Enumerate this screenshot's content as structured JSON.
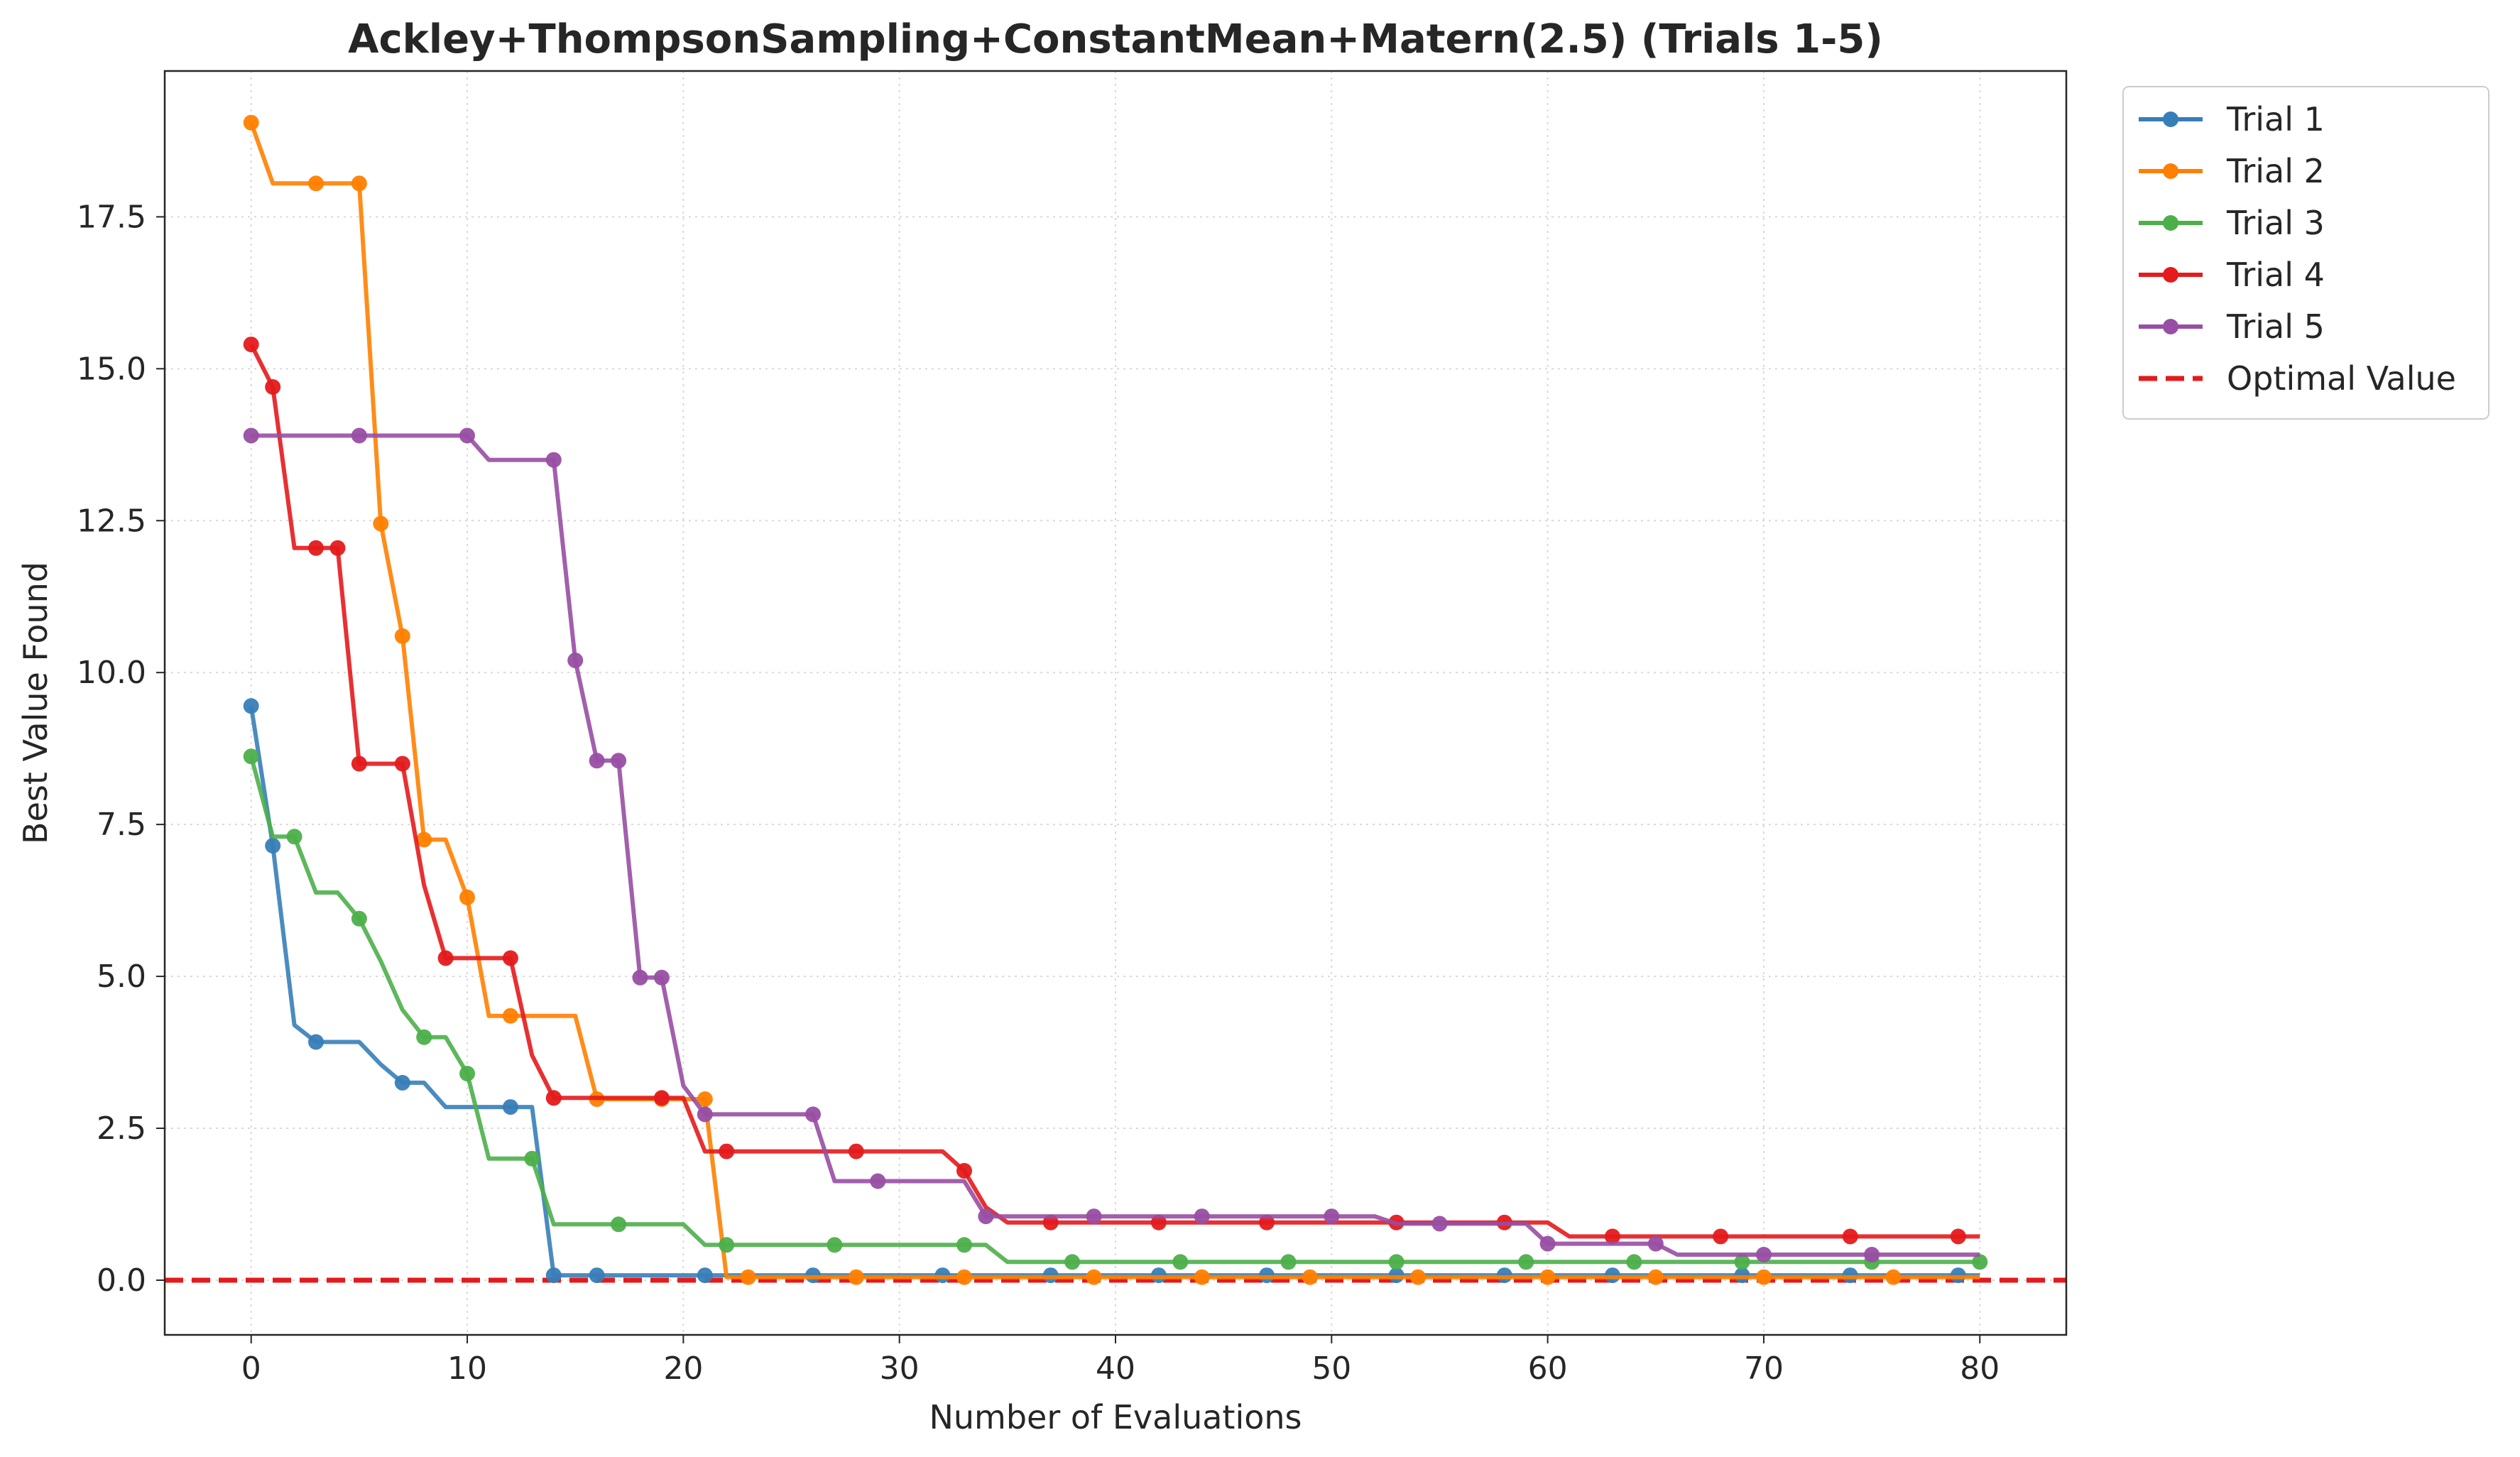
{
  "chart_data": {
    "type": "line",
    "title": "Ackley+ThompsonSampling+ConstantMean+Matern(2.5) (Trials 1-5)",
    "xlabel": "Number of Evaluations",
    "ylabel": "Best Value Found",
    "xlim": [
      -4,
      84
    ],
    "ylim": [
      -0.9,
      19.9
    ],
    "xticks": [
      0,
      10,
      20,
      30,
      40,
      50,
      60,
      70,
      80
    ],
    "xtick_labels": [
      "0",
      "10",
      "20",
      "30",
      "40",
      "50",
      "60",
      "70",
      "80"
    ],
    "yticks": [
      0.0,
      2.5,
      5.0,
      7.5,
      10.0,
      12.5,
      15.0,
      17.5
    ],
    "ytick_labels": [
      "0.0",
      "2.5",
      "5.0",
      "7.5",
      "10.0",
      "12.5",
      "15.0",
      "17.5"
    ],
    "grid": true,
    "legend_position": "outside-top-right",
    "optimal_value": 0.0,
    "optimal_label": "Optimal Value",
    "optimal_color": "#e41a1c",
    "series": [
      {
        "name": "Trial 1",
        "color": "#377eb8",
        "steps": [
          [
            0,
            9.45
          ],
          [
            1,
            7.15
          ],
          [
            2,
            4.2
          ],
          [
            3,
            3.92
          ],
          [
            5,
            3.92
          ],
          [
            6,
            3.55
          ],
          [
            7,
            3.25
          ],
          [
            8,
            3.25
          ],
          [
            9,
            2.85
          ],
          [
            13,
            2.85
          ],
          [
            14,
            0.08
          ],
          [
            80,
            0.08
          ]
        ],
        "markers": [
          [
            0,
            9.45
          ],
          [
            1,
            7.15
          ],
          [
            3,
            3.92
          ],
          [
            7,
            3.25
          ],
          [
            12,
            2.85
          ],
          [
            14,
            0.08
          ],
          [
            16,
            0.08
          ],
          [
            21,
            0.08
          ],
          [
            26,
            0.08
          ],
          [
            32,
            0.08
          ],
          [
            37,
            0.08
          ],
          [
            42,
            0.08
          ],
          [
            47,
            0.08
          ],
          [
            53,
            0.08
          ],
          [
            58,
            0.08
          ],
          [
            63,
            0.08
          ],
          [
            69,
            0.08
          ],
          [
            74,
            0.08
          ],
          [
            79,
            0.08
          ]
        ]
      },
      {
        "name": "Trial 2",
        "color": "#ff7f00",
        "steps": [
          [
            0,
            19.05
          ],
          [
            1,
            18.05
          ],
          [
            5,
            18.05
          ],
          [
            6,
            12.45
          ],
          [
            7,
            10.6
          ],
          [
            8,
            7.25
          ],
          [
            9,
            7.25
          ],
          [
            10,
            6.3
          ],
          [
            11,
            4.35
          ],
          [
            15,
            4.35
          ],
          [
            16,
            2.98
          ],
          [
            21,
            2.98
          ],
          [
            22,
            0.05
          ],
          [
            80,
            0.05
          ]
        ],
        "markers": [
          [
            0,
            19.05
          ],
          [
            3,
            18.05
          ],
          [
            5,
            18.05
          ],
          [
            6,
            12.45
          ],
          [
            7,
            10.6
          ],
          [
            8,
            7.25
          ],
          [
            10,
            6.3
          ],
          [
            12,
            4.35
          ],
          [
            16,
            2.98
          ],
          [
            19,
            2.98
          ],
          [
            21,
            2.98
          ],
          [
            23,
            0.05
          ],
          [
            28,
            0.05
          ],
          [
            33,
            0.05
          ],
          [
            39,
            0.05
          ],
          [
            44,
            0.05
          ],
          [
            49,
            0.05
          ],
          [
            54,
            0.05
          ],
          [
            60,
            0.05
          ],
          [
            65,
            0.05
          ],
          [
            70,
            0.05
          ],
          [
            76,
            0.05
          ]
        ]
      },
      {
        "name": "Trial 3",
        "color": "#4daf4a",
        "steps": [
          [
            0,
            8.62
          ],
          [
            1,
            7.3
          ],
          [
            2,
            7.3
          ],
          [
            3,
            6.38
          ],
          [
            4,
            6.38
          ],
          [
            5,
            5.95
          ],
          [
            6,
            5.25
          ],
          [
            7,
            4.45
          ],
          [
            8,
            4.0
          ],
          [
            9,
            4.0
          ],
          [
            10,
            3.4
          ],
          [
            11,
            2.0
          ],
          [
            13,
            2.0
          ],
          [
            14,
            0.92
          ],
          [
            20,
            0.92
          ],
          [
            21,
            0.58
          ],
          [
            33,
            0.58
          ],
          [
            34,
            0.58
          ],
          [
            35,
            0.3
          ],
          [
            80,
            0.3
          ]
        ],
        "markers": [
          [
            0,
            8.62
          ],
          [
            2,
            7.3
          ],
          [
            5,
            5.95
          ],
          [
            8,
            4.0
          ],
          [
            10,
            3.4
          ],
          [
            13,
            2.0
          ],
          [
            17,
            0.92
          ],
          [
            22,
            0.58
          ],
          [
            27,
            0.58
          ],
          [
            33,
            0.58
          ],
          [
            38,
            0.3
          ],
          [
            43,
            0.3
          ],
          [
            48,
            0.3
          ],
          [
            53,
            0.3
          ],
          [
            59,
            0.3
          ],
          [
            64,
            0.3
          ],
          [
            69,
            0.3
          ],
          [
            75,
            0.3
          ],
          [
            80,
            0.3
          ]
        ]
      },
      {
        "name": "Trial 4",
        "color": "#e41a1c",
        "steps": [
          [
            0,
            15.4
          ],
          [
            1,
            14.7
          ],
          [
            2,
            12.05
          ],
          [
            4,
            12.05
          ],
          [
            5,
            8.5
          ],
          [
            7,
            8.5
          ],
          [
            8,
            6.5
          ],
          [
            9,
            5.3
          ],
          [
            12,
            5.3
          ],
          [
            13,
            3.7
          ],
          [
            14,
            3.0
          ],
          [
            20,
            3.0
          ],
          [
            21,
            2.12
          ],
          [
            32,
            2.12
          ],
          [
            33,
            1.8
          ],
          [
            34,
            1.2
          ],
          [
            35,
            0.95
          ],
          [
            60,
            0.95
          ],
          [
            61,
            0.72
          ],
          [
            80,
            0.72
          ]
        ],
        "markers": [
          [
            0,
            15.4
          ],
          [
            1,
            14.7
          ],
          [
            3,
            12.05
          ],
          [
            4,
            12.05
          ],
          [
            5,
            8.5
          ],
          [
            7,
            8.5
          ],
          [
            9,
            5.3
          ],
          [
            12,
            5.3
          ],
          [
            14,
            3.0
          ],
          [
            19,
            3.0
          ],
          [
            22,
            2.12
          ],
          [
            28,
            2.12
          ],
          [
            33,
            1.8
          ],
          [
            37,
            0.95
          ],
          [
            42,
            0.95
          ],
          [
            47,
            0.95
          ],
          [
            53,
            0.95
          ],
          [
            58,
            0.95
          ],
          [
            63,
            0.72
          ],
          [
            68,
            0.72
          ],
          [
            74,
            0.72
          ],
          [
            79,
            0.72
          ]
        ]
      },
      {
        "name": "Trial 5",
        "color": "#984ea3",
        "steps": [
          [
            0,
            13.9
          ],
          [
            10,
            13.9
          ],
          [
            11,
            13.5
          ],
          [
            14,
            13.5
          ],
          [
            15,
            10.2
          ],
          [
            16,
            8.55
          ],
          [
            17,
            8.55
          ],
          [
            18,
            4.98
          ],
          [
            19,
            4.98
          ],
          [
            20,
            3.2
          ],
          [
            21,
            2.73
          ],
          [
            26,
            2.73
          ],
          [
            27,
            1.63
          ],
          [
            33,
            1.63
          ],
          [
            34,
            1.05
          ],
          [
            52,
            1.05
          ],
          [
            53,
            0.93
          ],
          [
            59,
            0.93
          ],
          [
            60,
            0.6
          ],
          [
            65,
            0.6
          ],
          [
            66,
            0.42
          ],
          [
            80,
            0.42
          ]
        ],
        "markers": [
          [
            0,
            13.9
          ],
          [
            5,
            13.9
          ],
          [
            10,
            13.9
          ],
          [
            14,
            13.5
          ],
          [
            15,
            10.2
          ],
          [
            16,
            8.55
          ],
          [
            17,
            8.55
          ],
          [
            18,
            4.98
          ],
          [
            19,
            4.98
          ],
          [
            21,
            2.73
          ],
          [
            26,
            2.73
          ],
          [
            29,
            1.63
          ],
          [
            34,
            1.05
          ],
          [
            39,
            1.05
          ],
          [
            44,
            1.05
          ],
          [
            50,
            1.05
          ],
          [
            55,
            0.93
          ],
          [
            60,
            0.6
          ],
          [
            65,
            0.6
          ],
          [
            70,
            0.42
          ],
          [
            75,
            0.42
          ]
        ]
      }
    ]
  }
}
